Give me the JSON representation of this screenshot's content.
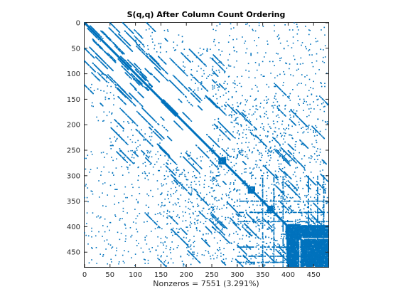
{
  "chart_data": {
    "type": "scatter",
    "title": "S(q,q) After Column Count Ordering",
    "xlabel": "Nonzeros = 7551 (3.291%)",
    "ylabel": "",
    "matrix_size": 479,
    "xlim": [
      0,
      479
    ],
    "ylim": [
      0,
      479
    ],
    "y_reversed": true,
    "grid": false,
    "marker_color": "#0072BD",
    "x_ticks": [
      0,
      50,
      100,
      150,
      200,
      250,
      300,
      350,
      400,
      450
    ],
    "y_ticks": [
      0,
      50,
      100,
      150,
      200,
      250,
      300,
      350,
      400,
      450
    ],
    "dense_blocks": [
      {
        "row": [
          264,
          278
        ],
        "col": [
          264,
          278
        ]
      },
      {
        "row": [
          322,
          335
        ],
        "col": [
          322,
          335
        ]
      },
      {
        "row": [
          360,
          370
        ],
        "col": [
          360,
          370
        ]
      },
      {
        "row": [
          396,
          425
        ],
        "col": [
          396,
          425
        ]
      },
      {
        "row": [
          425,
          479
        ],
        "col": [
          425,
          479
        ]
      },
      {
        "row": [
          425,
          479
        ],
        "col": [
          398,
          422
        ]
      },
      {
        "row": [
          398,
          422
        ],
        "col": [
          425,
          479
        ]
      }
    ],
    "off_diagonal_bands": [
      {
        "row": [
          0,
          12
        ],
        "col": [
          82,
          94
        ]
      },
      {
        "row": [
          82,
          94
        ],
        "col": [
          0,
          12
        ]
      },
      {
        "row": [
          10,
          60
        ],
        "col": [
          120,
          170
        ]
      },
      {
        "row": [
          50,
          110
        ],
        "col": [
          190,
          250
        ]
      },
      {
        "row": [
          100,
          200
        ],
        "col": [
          20,
          60
        ]
      },
      {
        "row": [
          210,
          300
        ],
        "col": [
          40,
          150
        ]
      },
      {
        "row": [
          280,
          479
        ],
        "col": [
          150,
          300
        ]
      },
      {
        "row": [
          150,
          479
        ],
        "col": [
          300,
          400
        ]
      },
      {
        "row": [
          300,
          479
        ],
        "col": [
          350,
          479
        ]
      },
      {
        "row": [
          0,
          300
        ],
        "col": [
          250,
          479
        ]
      }
    ]
  }
}
